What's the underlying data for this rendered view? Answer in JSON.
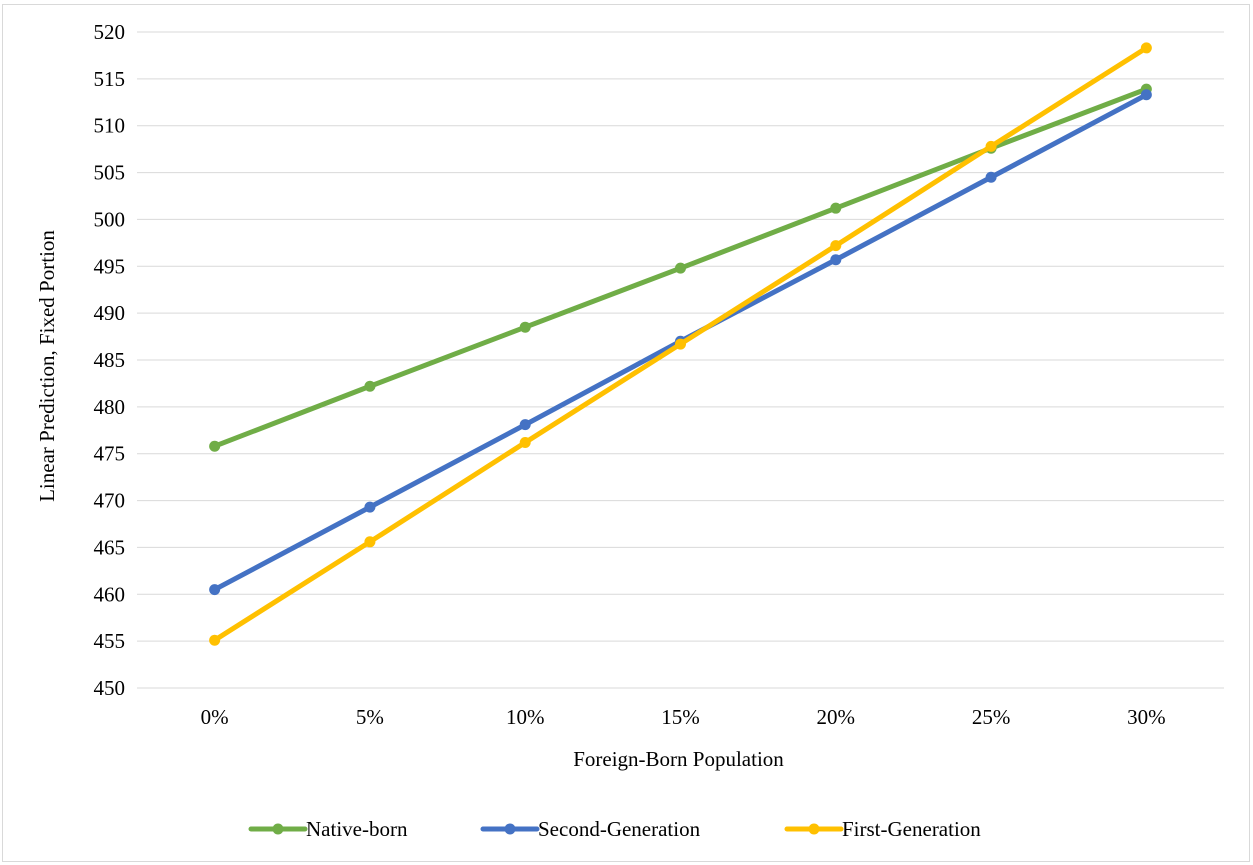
{
  "chart_data": {
    "type": "line",
    "title": "",
    "xlabel": "Foreign-Born Population",
    "ylabel": "Linear Prediction, Fixed Portion",
    "categories": [
      "0%",
      "5%",
      "10%",
      "15%",
      "20%",
      "25%",
      "30%"
    ],
    "ylim": [
      450,
      520
    ],
    "yticks": [
      450,
      455,
      460,
      465,
      470,
      475,
      480,
      485,
      490,
      495,
      500,
      505,
      510,
      515,
      520
    ],
    "grid": "horizontal",
    "legend_position": "bottom",
    "series": [
      {
        "name": "Native-born",
        "color": "#70ad47",
        "values": [
          475.8,
          482.2,
          488.5,
          494.8,
          501.2,
          507.6,
          513.9
        ]
      },
      {
        "name": "Second-Generation",
        "color": "#4472c4",
        "values": [
          460.5,
          469.3,
          478.1,
          487.0,
          495.7,
          504.5,
          513.3
        ]
      },
      {
        "name": "First-Generation",
        "color": "#ffc000",
        "values": [
          455.1,
          465.6,
          476.2,
          486.7,
          497.2,
          507.8,
          518.3
        ]
      }
    ]
  }
}
